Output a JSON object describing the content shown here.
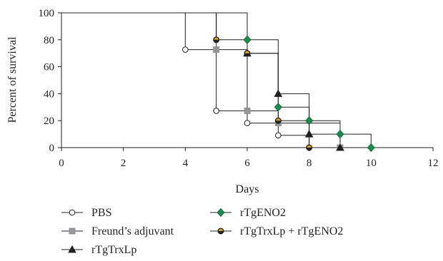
{
  "chart_data": {
    "type": "line",
    "step": true,
    "title": "",
    "xlabel": "Days",
    "ylabel": "Percent of survival",
    "xlim": [
      0,
      12
    ],
    "ylim": [
      0,
      100
    ],
    "xticks": [
      0,
      2,
      4,
      6,
      8,
      10,
      12
    ],
    "yticks": [
      0,
      20,
      40,
      60,
      80,
      100
    ],
    "grid": false,
    "legend_position": "bottom",
    "series": [
      {
        "name": "PBS",
        "color": "#231f20",
        "fill": "#ffffff",
        "marker": "circle",
        "x": [
          0,
          4,
          5,
          6,
          7,
          8
        ],
        "y": [
          100,
          72.7,
          27.3,
          18.2,
          9.1,
          0
        ]
      },
      {
        "name": "Freund’s adjuvant",
        "color": "#939598",
        "fill": "#939598",
        "marker": "square",
        "x": [
          0,
          5,
          6,
          7,
          9
        ],
        "y": [
          100,
          72.7,
          27.3,
          18.2,
          0
        ]
      },
      {
        "name": "rTgTrxLp",
        "color": "#231f20",
        "fill": "#231f20",
        "marker": "triangle",
        "x": [
          0,
          6,
          7,
          8,
          9
        ],
        "y": [
          100,
          70,
          40,
          10,
          0
        ]
      },
      {
        "name": "rTgENO2",
        "color": "#1d8a4e",
        "fill": "#1d8a4e",
        "marker": "diamond",
        "x": [
          0,
          6,
          7,
          8,
          9,
          10
        ],
        "y": [
          100,
          80,
          30,
          20,
          10,
          0
        ]
      },
      {
        "name": "rTgTrxLp + rTgENO2",
        "color": "#231f20",
        "fill": "#c9a227",
        "marker": "halfcircle",
        "x": [
          0,
          5,
          6,
          7,
          8
        ],
        "y": [
          100,
          80,
          70,
          20,
          0
        ]
      }
    ]
  }
}
